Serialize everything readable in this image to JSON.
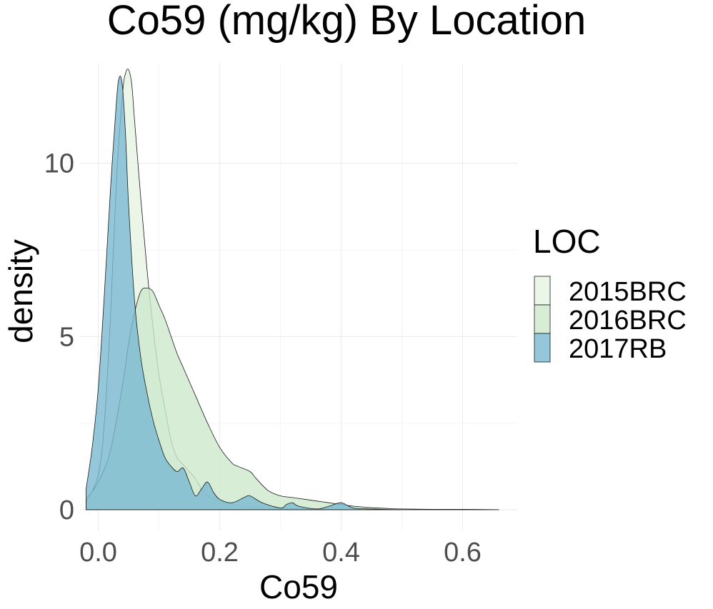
{
  "chart_data": {
    "type": "area",
    "title": "Co59 (mg/kg) By Location",
    "xlabel": "Co59",
    "ylabel": "density",
    "xlim": [
      -0.03,
      0.69
    ],
    "ylim": [
      -0.6,
      12.9
    ],
    "x_ticks": [
      0.0,
      0.2,
      0.4,
      0.6
    ],
    "x_tick_labels": [
      "0.0",
      "0.2",
      "0.4",
      "0.6"
    ],
    "y_ticks": [
      0,
      5,
      10
    ],
    "y_tick_labels": [
      "0",
      "5",
      "10"
    ],
    "grid": true,
    "legend": {
      "title": "LOC",
      "position": "right"
    },
    "series": [
      {
        "name": "2015BRC",
        "color": "#e6f4e3",
        "x": [
          -0.02,
          0.0,
          0.01,
          0.02,
          0.03,
          0.04,
          0.045,
          0.05,
          0.055,
          0.06,
          0.07,
          0.08,
          0.09,
          0.1,
          0.11,
          0.12,
          0.13,
          0.14,
          0.15,
          0.16,
          0.17,
          0.18,
          0.2,
          0.22,
          0.25,
          0.28,
          0.3,
          0.33,
          0.36,
          0.4,
          0.45,
          0.5
        ],
        "y": [
          0.2,
          1.0,
          2.5,
          5.5,
          9.5,
          12.0,
          12.6,
          12.7,
          12.3,
          11.2,
          9.0,
          7.0,
          5.3,
          3.9,
          2.9,
          2.0,
          1.5,
          1.3,
          1.1,
          0.9,
          0.6,
          0.4,
          0.25,
          0.15,
          0.1,
          0.07,
          0.05,
          0.03,
          0.02,
          0.01,
          0.0,
          0.0
        ]
      },
      {
        "name": "2016BRC",
        "color": "#cde9cc",
        "x": [
          -0.02,
          0.0,
          0.02,
          0.04,
          0.05,
          0.06,
          0.07,
          0.08,
          0.09,
          0.1,
          0.11,
          0.12,
          0.13,
          0.14,
          0.15,
          0.16,
          0.18,
          0.2,
          0.22,
          0.23,
          0.25,
          0.26,
          0.28,
          0.3,
          0.32,
          0.34,
          0.36,
          0.38,
          0.4,
          0.42,
          0.45,
          0.48,
          0.5,
          0.55,
          0.6,
          0.66
        ],
        "y": [
          0.3,
          0.8,
          1.7,
          3.6,
          4.8,
          5.7,
          6.3,
          6.4,
          6.3,
          5.9,
          5.5,
          5.0,
          4.5,
          4.1,
          3.7,
          3.3,
          2.5,
          1.8,
          1.35,
          1.25,
          1.1,
          0.9,
          0.55,
          0.4,
          0.35,
          0.3,
          0.25,
          0.2,
          0.15,
          0.1,
          0.06,
          0.03,
          0.02,
          0.01,
          0.01,
          0.0
        ]
      },
      {
        "name": "2017RB",
        "color": "#7ab9d2",
        "x": [
          -0.02,
          -0.01,
          0.0,
          0.01,
          0.02,
          0.03,
          0.035,
          0.04,
          0.045,
          0.05,
          0.06,
          0.07,
          0.08,
          0.09,
          0.1,
          0.11,
          0.12,
          0.13,
          0.14,
          0.15,
          0.16,
          0.17,
          0.18,
          0.19,
          0.2,
          0.22,
          0.24,
          0.25,
          0.27,
          0.3,
          0.31,
          0.32,
          0.33,
          0.36,
          0.38,
          0.4,
          0.42,
          0.45,
          0.5,
          0.66
        ],
        "y": [
          0.6,
          1.8,
          3.5,
          6.2,
          9.2,
          11.8,
          12.5,
          12.2,
          10.8,
          8.8,
          6.0,
          4.4,
          3.4,
          2.6,
          2.0,
          1.5,
          1.25,
          1.1,
          1.2,
          0.8,
          0.4,
          0.6,
          0.8,
          0.5,
          0.3,
          0.2,
          0.35,
          0.4,
          0.2,
          0.05,
          0.15,
          0.2,
          0.1,
          0.02,
          0.1,
          0.2,
          0.05,
          0.02,
          0.0,
          0.0
        ]
      }
    ]
  }
}
